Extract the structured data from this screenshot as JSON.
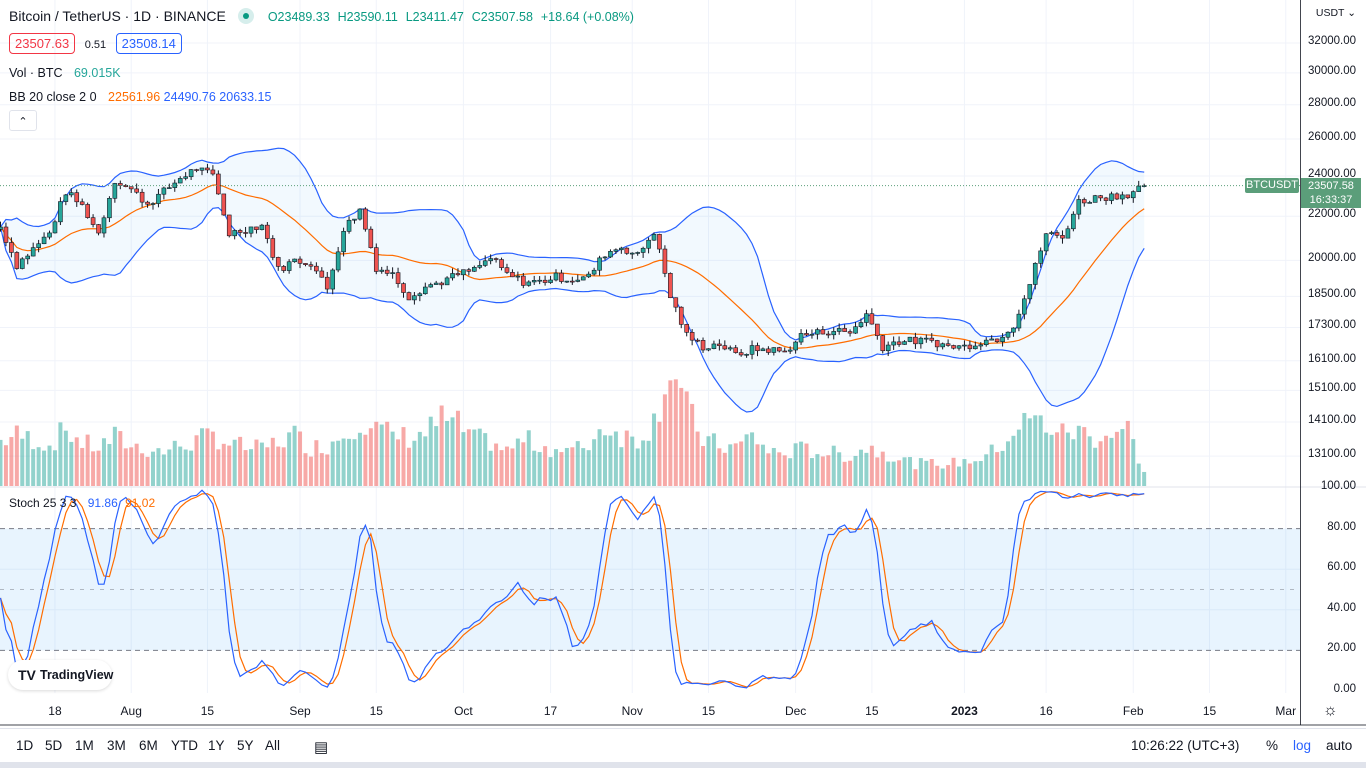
{
  "header": {
    "symbol": "Bitcoin / TetherUS · 1D · BINANCE",
    "open": "O23489.33",
    "high": "H23590.11",
    "low": "L23411.47",
    "close": "C23507.58",
    "change": "+18.64 (+0.08%)",
    "sell_price": "23507.63",
    "spread": "0.51",
    "buy_price": "23508.14"
  },
  "indicators": {
    "volume": {
      "label": "Vol · BTC",
      "value": "69.015K"
    },
    "bb": {
      "label": "BB 20 close 2 0",
      "basis": "22561.96",
      "upper": "24490.76",
      "lower": "20633.15"
    },
    "stoch": {
      "label": "Stoch 25 3 3",
      "k": "91.86",
      "d": "91.02"
    },
    "collapse_icon": "chevron-up-icon"
  },
  "price_axis": {
    "currency": "USDT",
    "labels": [
      "32000.00",
      "30000.00",
      "28000.00",
      "26000.00",
      "24000.00",
      "22000.00",
      "20000.00",
      "18500.00",
      "17300.00",
      "16100.00",
      "15100.00",
      "14100.00",
      "13100.00"
    ],
    "last_price": "23507.58",
    "countdown": "16:33:37",
    "symbol_tag": "BTCUSDT",
    "scale": "log"
  },
  "stoch_axis": {
    "labels": [
      "100.00",
      "80.00",
      "60.00",
      "40.00",
      "20.00",
      "0.00"
    ]
  },
  "time_axis": [
    {
      "label": "18",
      "date": "2022-07-18"
    },
    {
      "label": "Aug",
      "date": "2022-08-01"
    },
    {
      "label": "15",
      "date": "2022-08-15"
    },
    {
      "label": "Sep",
      "date": "2022-09-01"
    },
    {
      "label": "15",
      "date": "2022-09-15"
    },
    {
      "label": "Oct",
      "date": "2022-10-01"
    },
    {
      "label": "17",
      "date": "2022-10-17"
    },
    {
      "label": "Nov",
      "date": "2022-11-01"
    },
    {
      "label": "15",
      "date": "2022-11-15"
    },
    {
      "label": "Dec",
      "date": "2022-12-01"
    },
    {
      "label": "15",
      "date": "2022-12-15"
    },
    {
      "label": "2023",
      "date": "2023-01-01"
    },
    {
      "label": "16",
      "date": "2023-01-16"
    },
    {
      "label": "Feb",
      "date": "2023-02-01"
    },
    {
      "label": "15",
      "date": "2023-02-15"
    },
    {
      "label": "Mar",
      "date": "2023-03-01"
    }
  ],
  "toolbar": {
    "ranges": [
      "1D",
      "5D",
      "1M",
      "3M",
      "6M",
      "YTD",
      "1Y",
      "5Y",
      "All"
    ],
    "clock": "10:26:22 (UTC+3)",
    "percent": "%",
    "log": "log",
    "auto": "auto"
  },
  "watermark": "TradingView",
  "colors": {
    "up": "#26a69a",
    "down": "#ef5350",
    "bb_band": "#2962ff",
    "bb_basis": "#ff6d00",
    "stoch_k": "#2962ff",
    "stoch_d": "#ff6d00",
    "last_price": "#5b9e7a"
  },
  "chart_data": {
    "type": "candlestick",
    "first_date": "2022-07-08",
    "step_days": 3,
    "closes": [
      21500,
      19800,
      20500,
      21200,
      23200,
      22500,
      21200,
      23800,
      23300,
      22600,
      23200,
      23900,
      24400,
      24000,
      21200,
      21400,
      21600,
      19600,
      20000,
      19900,
      18800,
      21400,
      22300,
      19700,
      19400,
      18500,
      18900,
      19100,
      19400,
      19600,
      20100,
      19400,
      19100,
      19100,
      19300,
      19200,
      19300,
      20300,
      20600,
      20200,
      21300,
      18500,
      17000,
      16600,
      16700,
      16300,
      16500,
      16500,
      16400,
      17000,
      17100,
      17200,
      17100,
      17800,
      16600,
      16800,
      16800,
      16800,
      16600,
      16600,
      16800,
      16900,
      17400,
      19000,
      21200,
      21000,
      22700,
      22900,
      23000,
      23100,
      23507.58
    ],
    "volumes_k": [
      220,
      250,
      230,
      200,
      280,
      210,
      190,
      240,
      200,
      180,
      170,
      200,
      220,
      250,
      210,
      190,
      180,
      220,
      250,
      190,
      200,
      260,
      330,
      280,
      250,
      240,
      260,
      330,
      300,
      230,
      220,
      170,
      230,
      200,
      180,
      170,
      210,
      300,
      250,
      230,
      320,
      600,
      380,
      230,
      200,
      190,
      250,
      170,
      160,
      180,
      170,
      160,
      150,
      190,
      170,
      140,
      110,
      110,
      110,
      120,
      140,
      180,
      270,
      330,
      300,
      260,
      270,
      240,
      260,
      280,
      69.015
    ],
    "bb_period": 20,
    "stoch_params": [
      25,
      3,
      3
    ]
  }
}
